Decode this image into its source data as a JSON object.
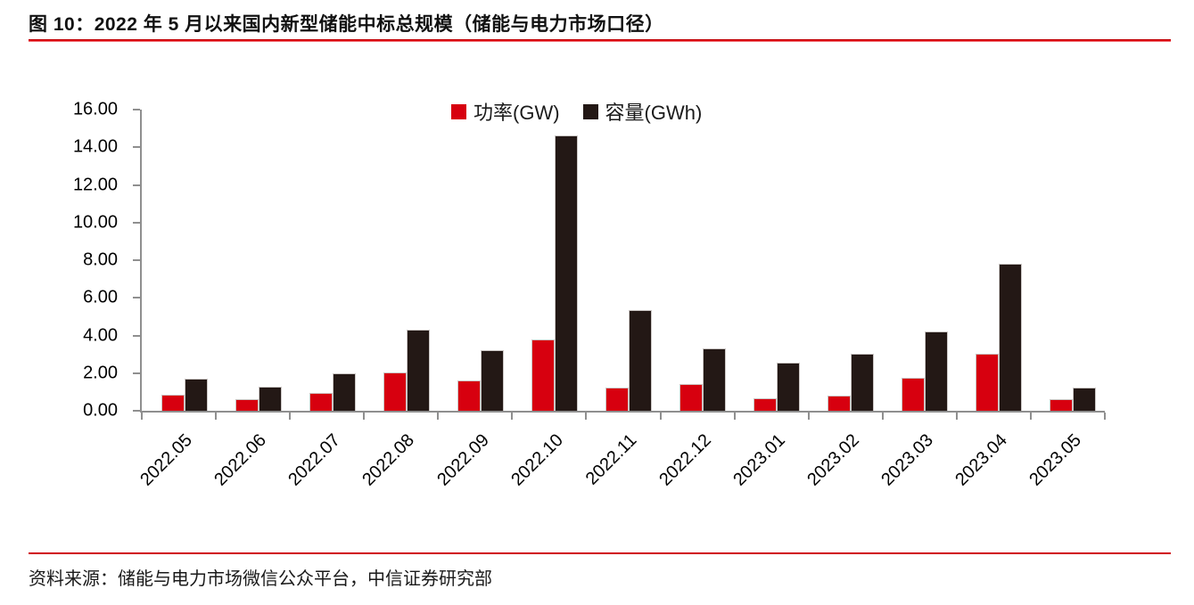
{
  "figure": {
    "title": "图 10：2022 年 5 月以来国内新型储能中标总规模（储能与电力市场口径）",
    "source": "资料来源：储能与电力市场微信公众平台，中信证券研究部"
  },
  "colors": {
    "power_red": "#d7000f",
    "capacity_black": "#231815",
    "axis_gray": "#8f8f8f",
    "rule_red": "#d0000f"
  },
  "chart_data": {
    "type": "bar",
    "title": "",
    "xlabel": "",
    "ylabel": "",
    "categories": [
      "2022.05",
      "2022.06",
      "2022.07",
      "2022.08",
      "2022.09",
      "2022.10",
      "2022.11",
      "2022.12",
      "2023.01",
      "2023.02",
      "2023.03",
      "2023.04",
      "2023.05"
    ],
    "series": [
      {
        "name": "功率(GW)",
        "color": "#d7000f",
        "values": [
          0.85,
          0.6,
          0.95,
          2.05,
          1.6,
          3.8,
          1.25,
          1.4,
          0.65,
          0.8,
          1.75,
          3.05,
          0.6
        ]
      },
      {
        "name": "容量(GWh)",
        "color": "#231815",
        "values": [
          1.7,
          1.3,
          2.0,
          4.3,
          3.2,
          14.65,
          5.35,
          3.3,
          2.55,
          3.05,
          4.2,
          7.8,
          1.25
        ]
      }
    ],
    "ylim": [
      0,
      16
    ],
    "ytick_step": 2,
    "ytick_decimals": 2,
    "grid": false,
    "legend_position": "top-center",
    "xlabel_rotation_deg": -45
  }
}
